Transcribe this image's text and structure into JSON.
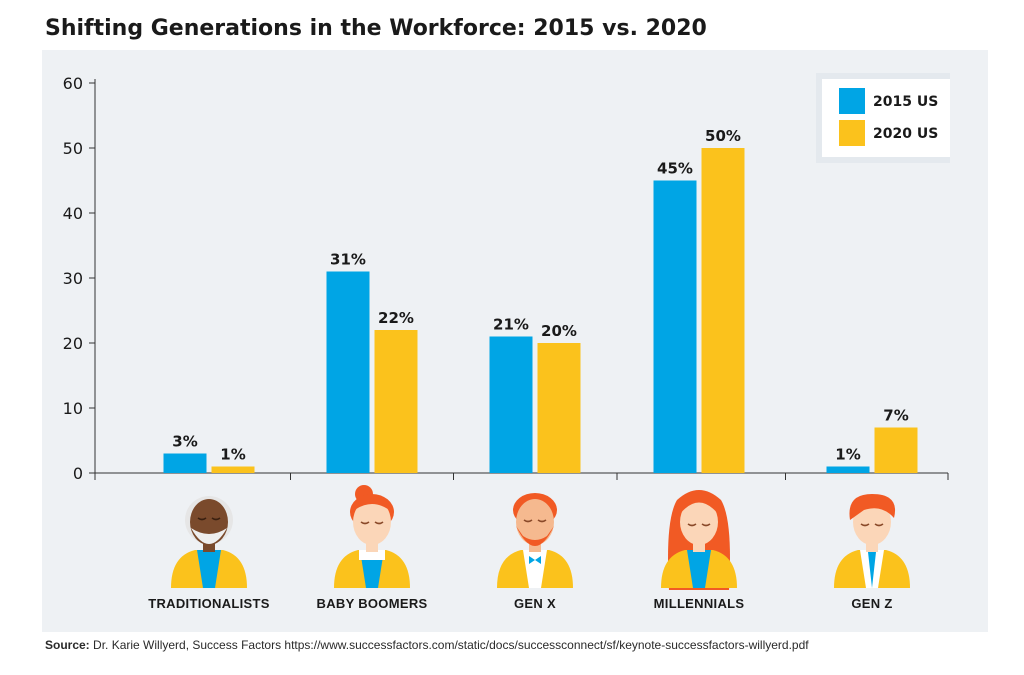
{
  "chart_data": {
    "type": "bar",
    "title": "Shifting Generations in the Workforce: 2015 vs. 2020",
    "categories": [
      "TRADITIONALISTS",
      "BABY BOOMERS",
      "GEN X",
      "MILLENNIALS",
      "GEN Z"
    ],
    "series": [
      {
        "name": "2015 US",
        "color": "#00a5e5",
        "values": [
          3,
          31,
          21,
          45,
          1
        ],
        "labels": [
          "3%",
          "31%",
          "21%",
          "45%",
          "1%"
        ]
      },
      {
        "name": "2020 US",
        "color": "#fbc21c",
        "values": [
          1,
          22,
          20,
          50,
          7
        ],
        "labels": [
          "1%",
          "22%",
          "20%",
          "50%",
          "7%"
        ]
      }
    ],
    "yticks": [
      0,
      10,
      20,
      30,
      40,
      50,
      60
    ],
    "ylim": [
      0,
      60
    ],
    "grid": false,
    "legend": "top-right",
    "xlabel": "",
    "ylabel": ""
  },
  "avatars": [
    "elderly-man-avatar",
    "woman-with-bun-avatar",
    "bearded-man-avatar",
    "long-haired-woman-avatar",
    "young-man-avatar"
  ],
  "source": {
    "label": "Source:",
    "text": "Dr. Karie Willyerd, Success Factors https://www.successfactors.com/static/docs/successconnect/sf/keynote-successfactors-willyerd.pdf"
  }
}
